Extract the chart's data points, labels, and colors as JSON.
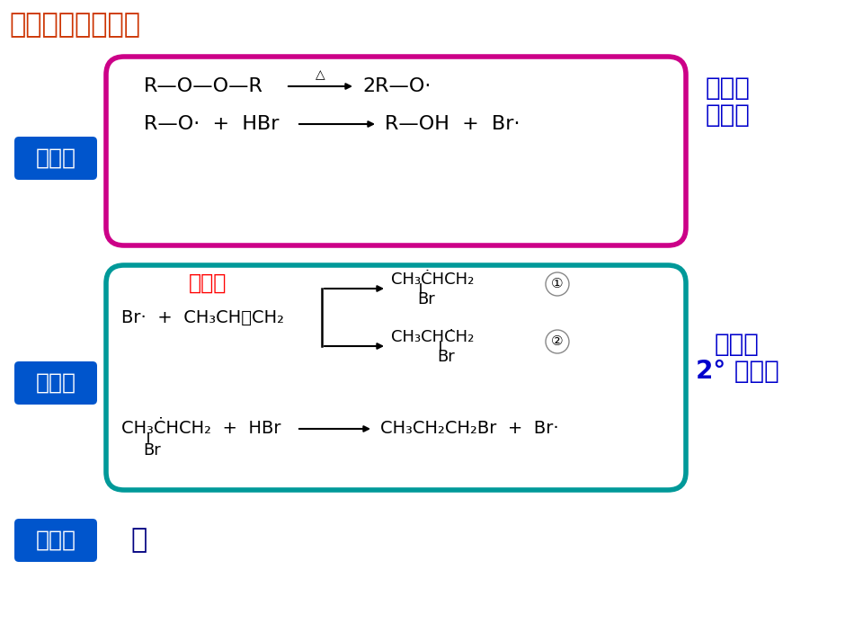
{
  "title": "过氧化效应的机理",
  "title_color": "#CC3300",
  "bg_color": "#FFFFFF",
  "label1": "链引发",
  "label2": "链传递",
  "label3": "链终止",
  "label_bg": "#0055CC",
  "label_fg": "#FFFFFF",
  "box1_border": "#CC0088",
  "box2_border": "#009999",
  "side_label1_line1": "烷氧基",
  "side_label1_line2": "自由基",
  "side_label1_color": "#0000CC",
  "wei_zu": "位阻小",
  "wei_zu_color": "#FF0000",
  "side_label2_line1": "稳定的",
  "side_label2_line2": "2° 自由基",
  "side_label2_color": "#0000CC",
  "lue": "略",
  "lue_color": "#000080"
}
